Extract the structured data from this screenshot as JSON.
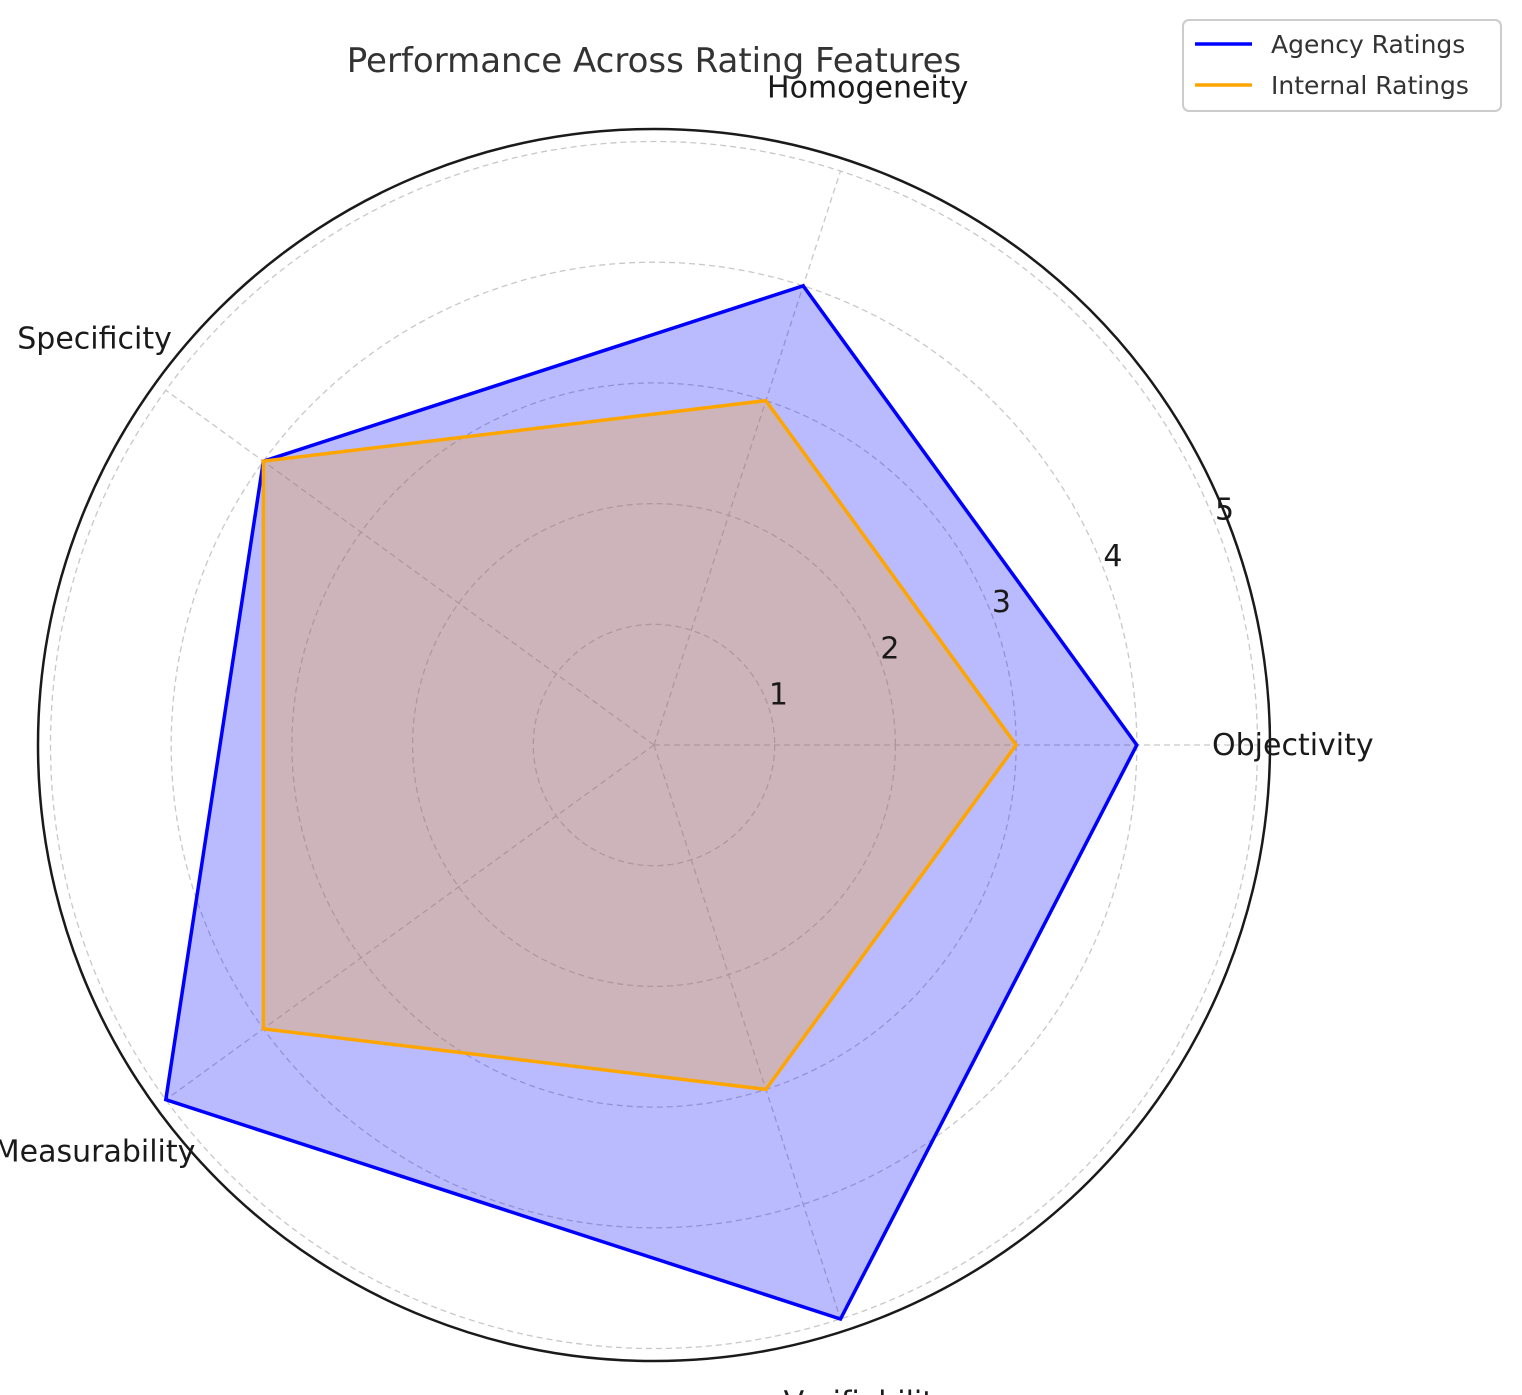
{
  "chart_data": {
    "type": "radar",
    "title": "Performance Across Rating Features",
    "categories": [
      "Objectivity",
      "Homogeneity",
      "Specificity",
      "Measurability",
      "Verifiability"
    ],
    "radial_ticks": [
      "1",
      "2",
      "3",
      "4",
      "5"
    ],
    "rlim": [
      0,
      5
    ],
    "grid": true,
    "legend_position": "top-right",
    "series": [
      {
        "name": "Agency Ratings",
        "values": [
          4,
          4,
          4,
          5,
          5
        ],
        "color": "#0000ff",
        "fill": "#0000ff",
        "fill_opacity": 0.27
      },
      {
        "name": "Internal Ratings",
        "values": [
          3,
          3,
          4,
          4,
          3
        ],
        "color": "#ffa500",
        "fill": "#ffa500",
        "fill_opacity": 0.27
      }
    ]
  }
}
